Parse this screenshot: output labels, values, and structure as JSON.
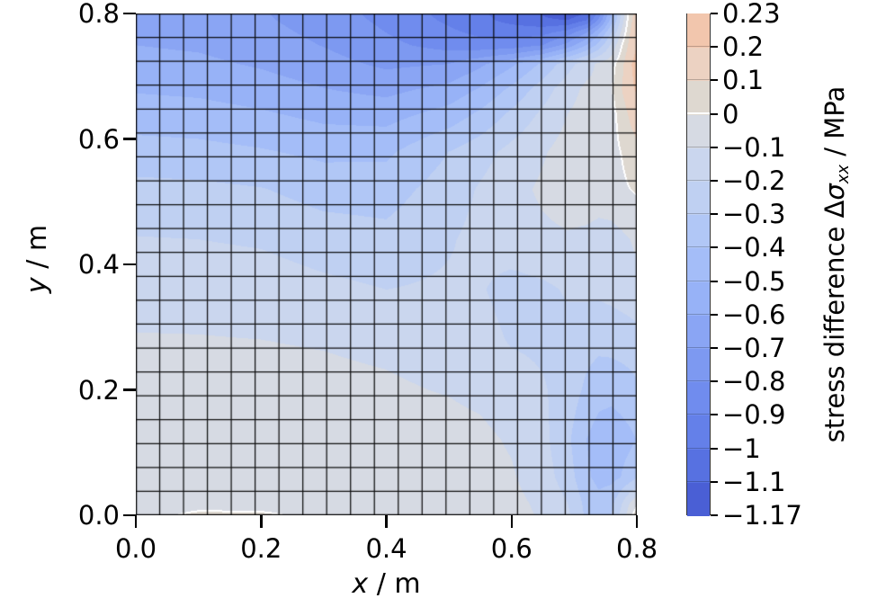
{
  "figure": {
    "background": "#ffffff",
    "text_color": "#000000"
  },
  "chart_data": {
    "type": "heatmap",
    "subtype": "filled-contour-with-fe-mesh",
    "title": "",
    "xlabel": "x / m",
    "ylabel": "y / m",
    "colorbar_label": "stress difference Δσ_xx / MPa",
    "xlim": [
      0.0,
      0.8
    ],
    "ylim": [
      0.0,
      0.8
    ],
    "x_tick_values": [
      0.0,
      0.2,
      0.4,
      0.6,
      0.8
    ],
    "x_tick_labels": [
      "0.0",
      "0.2",
      "0.4",
      "0.6",
      "0.8"
    ],
    "y_tick_values": [
      0.0,
      0.2,
      0.4,
      0.6,
      0.8
    ],
    "y_tick_labels": [
      "0.0",
      "0.2",
      "0.4",
      "0.6",
      "0.8"
    ],
    "grid_mesh": {
      "nx": 21,
      "ny": 21,
      "line_color": "rgba(5,5,5,0.95)",
      "line_width": 1.25
    },
    "value_min": -1.17,
    "value_max": 0.23,
    "levels": [
      -1.17,
      -1.1,
      -1.0,
      -0.9,
      -0.8,
      -0.7,
      -0.6,
      -0.5,
      -0.4,
      -0.3,
      -0.2,
      -0.1,
      0.0,
      0.1,
      0.2,
      0.23
    ],
    "band_colors_ascending": [
      "#4a5fd5",
      "#5771e1",
      "#6480e9",
      "#708cee",
      "#7d99f1",
      "#8aa5f4",
      "#97b2f7",
      "#a4bdf8",
      "#b1c7f6",
      "#bfd0f2",
      "#cad6ee",
      "#d6dae3",
      "#ded8d0",
      "#ecd2c2",
      "#f2c6ad"
    ],
    "zero_contour_color": "#ffffff",
    "colorbar_tick_labels": [
      "0.23",
      "0.2",
      "0.1",
      "0",
      "−0.1",
      "−0.2",
      "−0.3",
      "−0.4",
      "−0.5",
      "−0.6",
      "−0.7",
      "−0.8",
      "−0.9",
      "−1",
      "−1.1",
      "−1.17"
    ],
    "field": {
      "xs": [
        0.0,
        0.1,
        0.2,
        0.3,
        0.4,
        0.5,
        0.55,
        0.6,
        0.65,
        0.69,
        0.72,
        0.74,
        0.76,
        0.775,
        0.79,
        0.8
      ],
      "ys": [
        0.0,
        0.02,
        0.06,
        0.12,
        0.2,
        0.28,
        0.36,
        0.44,
        0.52,
        0.58,
        0.64,
        0.68,
        0.72,
        0.75,
        0.77,
        0.79,
        0.8
      ],
      "values": [
        [
          -0.04,
          0.02,
          0.015,
          -0.03,
          -0.04,
          -0.045,
          -0.05,
          -0.07,
          -0.11,
          -0.18,
          -0.32,
          -0.36,
          -0.3,
          -0.18,
          -0.04,
          0.06
        ],
        [
          -0.05,
          -0.045,
          -0.045,
          -0.05,
          -0.05,
          -0.052,
          -0.056,
          -0.075,
          -0.12,
          -0.2,
          -0.33,
          -0.37,
          -0.33,
          -0.22,
          -0.1,
          -0.04
        ],
        [
          -0.055,
          -0.055,
          -0.055,
          -0.056,
          -0.056,
          -0.058,
          -0.065,
          -0.09,
          -0.15,
          -0.25,
          -0.38,
          -0.43,
          -0.43,
          -0.4,
          -0.35,
          -0.31
        ],
        [
          -0.06,
          -0.06,
          -0.062,
          -0.063,
          -0.065,
          -0.07,
          -0.08,
          -0.11,
          -0.17,
          -0.28,
          -0.4,
          -0.45,
          -0.46,
          -0.44,
          -0.42,
          -0.4
        ],
        [
          -0.075,
          -0.076,
          -0.079,
          -0.083,
          -0.09,
          -0.105,
          -0.12,
          -0.15,
          -0.19,
          -0.24,
          -0.32,
          -0.36,
          -0.37,
          -0.36,
          -0.34,
          -0.32
        ],
        [
          -0.095,
          -0.096,
          -0.1,
          -0.105,
          -0.115,
          -0.135,
          -0.16,
          -0.21,
          -0.22,
          -0.23,
          -0.26,
          -0.27,
          -0.26,
          -0.25,
          -0.24,
          -0.23
        ],
        [
          -0.13,
          -0.135,
          -0.145,
          -0.175,
          -0.2,
          -0.185,
          -0.19,
          -0.24,
          -0.22,
          -0.19,
          -0.18,
          -0.18,
          -0.17,
          -0.16,
          -0.15,
          -0.14
        ],
        [
          -0.195,
          -0.2,
          -0.213,
          -0.25,
          -0.27,
          -0.21,
          -0.17,
          -0.14,
          -0.12,
          -0.11,
          -0.12,
          -0.13,
          -0.13,
          -0.12,
          -0.1,
          -0.08
        ],
        [
          -0.27,
          -0.277,
          -0.295,
          -0.34,
          -0.345,
          -0.25,
          -0.19,
          -0.13,
          -0.085,
          -0.055,
          -0.05,
          -0.06,
          -0.05,
          -0.02,
          0.0,
          0.01
        ],
        [
          -0.36,
          -0.369,
          -0.391,
          -0.424,
          -0.42,
          -0.3,
          -0.24,
          -0.17,
          -0.11,
          -0.06,
          -0.045,
          -0.04,
          -0.03,
          0.0,
          0.04,
          0.07
        ],
        [
          -0.45,
          -0.46,
          -0.487,
          -0.527,
          -0.54,
          -0.46,
          -0.38,
          -0.28,
          -0.18,
          -0.1,
          -0.06,
          -0.03,
          -0.04,
          0.04,
          0.12,
          0.16
        ],
        [
          -0.51,
          -0.522,
          -0.552,
          -0.597,
          -0.63,
          -0.57,
          -0.49,
          -0.38,
          -0.25,
          -0.14,
          -0.08,
          -0.08,
          -0.01,
          0.09,
          0.18,
          0.21
        ],
        [
          -0.565,
          -0.578,
          -0.612,
          -0.662,
          -0.72,
          -0.7,
          -0.62,
          -0.52,
          -0.38,
          -0.24,
          -0.14,
          -0.08,
          -0.04,
          0.06,
          0.19,
          0.23
        ],
        [
          -0.6,
          -0.614,
          -0.65,
          -0.704,
          -0.774,
          -0.84,
          -0.86,
          -0.86,
          -0.8,
          -0.66,
          -0.5,
          -0.36,
          -0.18,
          -0.02,
          0.14,
          0.2
        ],
        [
          -0.615,
          -0.63,
          -0.668,
          -0.725,
          -0.8,
          -0.88,
          -0.92,
          -0.94,
          -0.93,
          -0.85,
          -0.7,
          -0.52,
          -0.3,
          -0.1,
          0.1,
          0.18
        ],
        [
          -0.63,
          -0.646,
          -0.686,
          -0.745,
          -0.822,
          -0.918,
          -0.972,
          -1.03,
          -1.08,
          -1.1,
          -1.0,
          -0.78,
          -0.45,
          -0.18,
          0.07,
          0.16
        ],
        [
          -0.635,
          -0.651,
          -0.692,
          -0.753,
          -0.832,
          -0.93,
          -0.985,
          -1.044,
          -1.107,
          -1.17,
          -1.09,
          -0.85,
          -0.5,
          -0.2,
          0.05,
          0.15
        ]
      ]
    }
  },
  "labels": {
    "xlabel_parts": [
      {
        "text": "x",
        "italic": true
      },
      {
        "text": " / m"
      }
    ],
    "ylabel_parts": [
      {
        "text": "y",
        "italic": true
      },
      {
        "text": " / m"
      }
    ],
    "colorbar_label_parts": [
      {
        "text": "stress difference Δ"
      },
      {
        "text": "σ",
        "italic": true
      },
      {
        "text": "xx",
        "italic": true,
        "sub": true
      },
      {
        "text": " / MPa"
      }
    ]
  }
}
